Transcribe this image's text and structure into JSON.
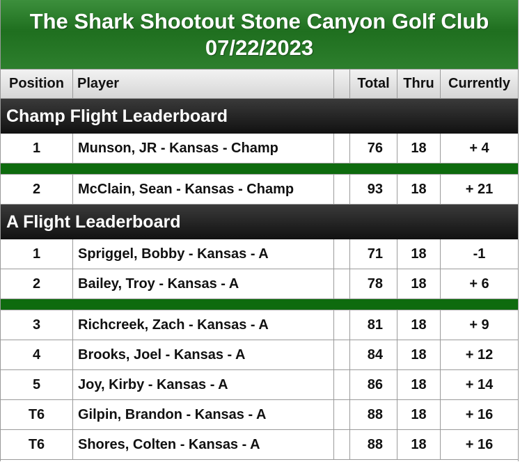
{
  "title": {
    "line1": "The Shark Shootout Stone Canyon Golf Club",
    "line2": "07/22/2023"
  },
  "columns": {
    "position": "Position",
    "player": "Player",
    "blank": "",
    "total": "Total",
    "thru": "Thru",
    "currently": "Currently"
  },
  "colors": {
    "title_green": "#1f6f1f",
    "separator_green": "#0e6b0e",
    "section_black": "#111111"
  },
  "champ_flight": {
    "title": "Champ Flight Leaderboard",
    "rows": [
      {
        "position": "1",
        "player": "Munson, JR - Kansas - Champ",
        "total": "76",
        "thru": "18",
        "currently": "+ 4"
      },
      {
        "position": "2",
        "player": "McClain, Sean - Kansas - Champ",
        "total": "93",
        "thru": "18",
        "currently": "+ 21"
      }
    ]
  },
  "a_flight": {
    "title": "A Flight Leaderboard",
    "rows": [
      {
        "position": "1",
        "player": "Spriggel, Bobby - Kansas - A",
        "total": "71",
        "thru": "18",
        "currently": "-1"
      },
      {
        "position": "2",
        "player": "Bailey, Troy - Kansas - A",
        "total": "78",
        "thru": "18",
        "currently": "+ 6"
      },
      {
        "position": "3",
        "player": "Richcreek, Zach - Kansas - A",
        "total": "81",
        "thru": "18",
        "currently": "+ 9"
      },
      {
        "position": "4",
        "player": "Brooks, Joel - Kansas - A",
        "total": "84",
        "thru": "18",
        "currently": "+ 12"
      },
      {
        "position": "5",
        "player": "Joy, Kirby - Kansas - A",
        "total": "86",
        "thru": "18",
        "currently": "+ 14"
      },
      {
        "position": "T6",
        "player": "Gilpin, Brandon - Kansas - A",
        "total": "88",
        "thru": "18",
        "currently": "+ 16"
      },
      {
        "position": "T6",
        "player": "Shores, Colten - Kansas - A",
        "total": "88",
        "thru": "18",
        "currently": "+ 16"
      }
    ]
  }
}
